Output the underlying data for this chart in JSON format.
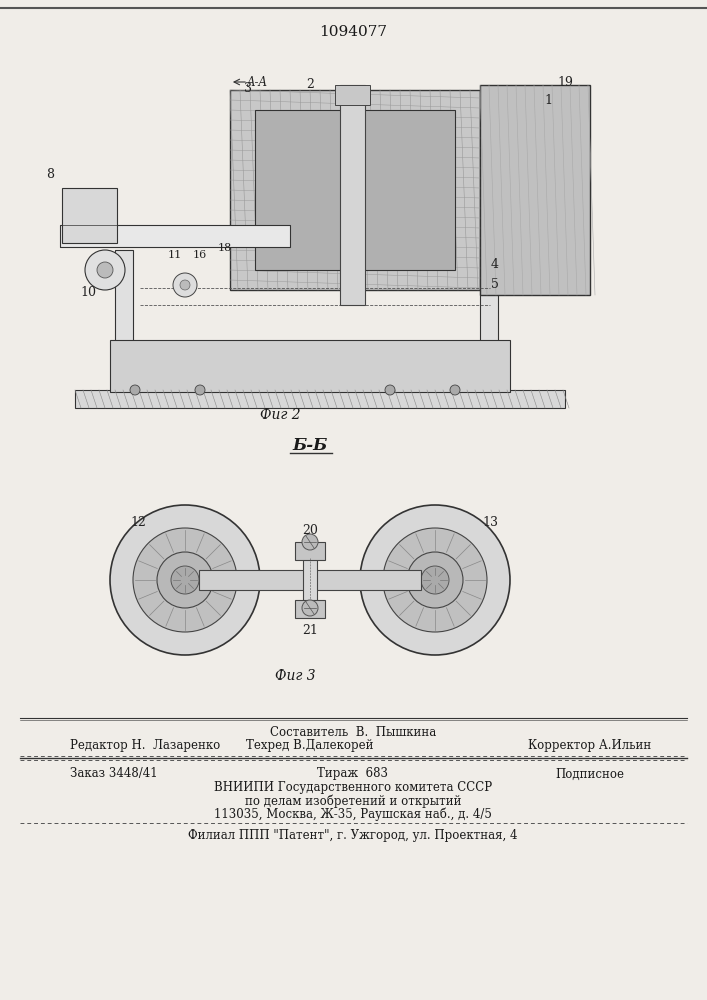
{
  "patent_number": "1094077",
  "bg_color": "#f0ede8",
  "text_color": "#1a1a1a",
  "fig2_caption": "Фиг 2",
  "fig3_caption": "Фиг 3",
  "section_label": "Б-Б",
  "footer_line1_center": "Составитель  В.  Пышкина",
  "footer_line2_left": "Редактор Н.  Лазаренко",
  "footer_line2_center": "Техред В.Далекорей",
  "footer_line2_right": "Корректор А.Ильин",
  "footer_line3_left": "Заказ 3448/41",
  "footer_line3_center": "Тираж  683",
  "footer_line3_right": "Подписное",
  "footer_line4": "ВНИИПИ Государственного комитета СССР",
  "footer_line5": "по делам изобретений и открытий",
  "footer_line6": "113035, Москва, Ж-35, Раушская наб., д. 4/5",
  "footer_line7": "Филиал ППП \"Патент\", г. Ужгород, ул. Проектная, 4"
}
